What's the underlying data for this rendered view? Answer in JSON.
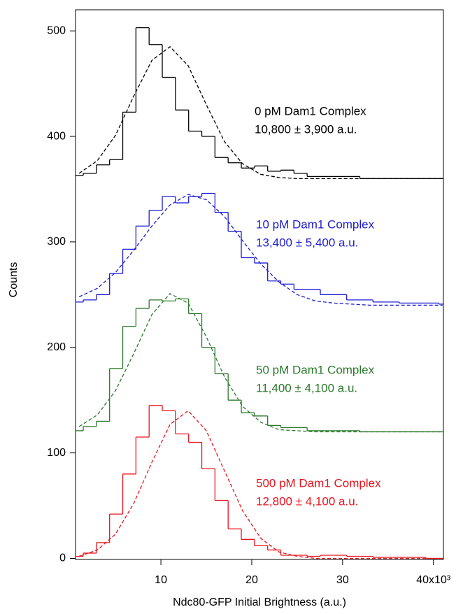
{
  "chart_data": {
    "type": "histogram",
    "x_label": "Ndc80-GFP Initial Brightness (a.u.)",
    "y_label": "Counts",
    "xlim": [
      600,
      41100
    ],
    "ylim": [
      -1,
      520
    ],
    "xticks": [
      {
        "value": 10000,
        "label": "10"
      },
      {
        "value": 20000,
        "label": "20"
      },
      {
        "value": 30000,
        "label": "30"
      },
      {
        "value": 40000,
        "label": "40x10³"
      }
    ],
    "yticks": [
      0,
      100,
      200,
      300,
      400,
      500
    ],
    "bins": [
      0,
      1450,
      2900,
      4350,
      5800,
      7250,
      8700,
      10150,
      11600,
      13050,
      14500,
      15950,
      17400,
      18850,
      20300,
      21750,
      23200,
      24650,
      26100,
      27550,
      29000,
      30450,
      31900,
      33350,
      34800,
      36250,
      37700,
      39150,
      40600,
      42050
    ],
    "fit_x": [
      1000,
      3000,
      5000,
      7000,
      9000,
      11000,
      13000,
      15000,
      17000,
      19000,
      21000,
      23000,
      25000,
      27000,
      29000,
      31000,
      33000,
      35000,
      37000,
      39000,
      41000
    ],
    "series": [
      {
        "name": "0 pM Dam1 Complex",
        "annotation": "10,800 ± 3,900 a.u.",
        "color": "#000000",
        "values": [
          363,
          365,
          373,
          378,
          423,
          503,
          487,
          456,
          425,
          405,
          400,
          380,
          375,
          370,
          372,
          367,
          368,
          365,
          362,
          362,
          362,
          362,
          360,
          360,
          360,
          360,
          360,
          360,
          360
        ],
        "fit_values": [
          365,
          377,
          401,
          438,
          472,
          485,
          467,
          430,
          395,
          374,
          364,
          361,
          360,
          360,
          360,
          360,
          360,
          360,
          360,
          360,
          360
        ]
      },
      {
        "name": "10 pM Dam1 Complex",
        "annotation": "13,400 ± 5,400 a.u.",
        "color": "#1c1cd6",
        "values": [
          243,
          245,
          250,
          270,
          293,
          315,
          330,
          343,
          337,
          343,
          346,
          328,
          310,
          285,
          280,
          263,
          260,
          255,
          255,
          250,
          250,
          245,
          245,
          243,
          243,
          242,
          242,
          242,
          241
        ],
        "fit_values": [
          248,
          256,
          271,
          292,
          315,
          335,
          345,
          340,
          324,
          301,
          279,
          262,
          250,
          244,
          242,
          241,
          240,
          240,
          240,
          240,
          240
        ]
      },
      {
        "name": "50 pM Dam1 Complex",
        "annotation": "11,400 ± 4,100 a.u.",
        "color": "#2a7a2a",
        "values": [
          121,
          125,
          130,
          180,
          220,
          237,
          245,
          244,
          246,
          232,
          200,
          175,
          150,
          138,
          135,
          126,
          124,
          124,
          121,
          121,
          121,
          121,
          120,
          120,
          120,
          120,
          120,
          120,
          120
        ],
        "fit_values": [
          125,
          136,
          159,
          194,
          231,
          251,
          242,
          210,
          172,
          144,
          129,
          122,
          121,
          120,
          120,
          120,
          120,
          120,
          120,
          120,
          120
        ]
      },
      {
        "name": "500 pM Dam1 Complex",
        "annotation": "12,800 ± 4,100 a.u.",
        "color": "#e8141e",
        "values": [
          2,
          5,
          15,
          42,
          80,
          115,
          145,
          140,
          118,
          110,
          85,
          55,
          28,
          18,
          12,
          8,
          3,
          3,
          2,
          3,
          3,
          2,
          2,
          1,
          1,
          1,
          1,
          0,
          0
        ],
        "fit_values": [
          2,
          8,
          23,
          52,
          91,
          127,
          140,
          121,
          83,
          45,
          19,
          6,
          2,
          0,
          0,
          0,
          0,
          0,
          0,
          0,
          0
        ]
      }
    ]
  }
}
